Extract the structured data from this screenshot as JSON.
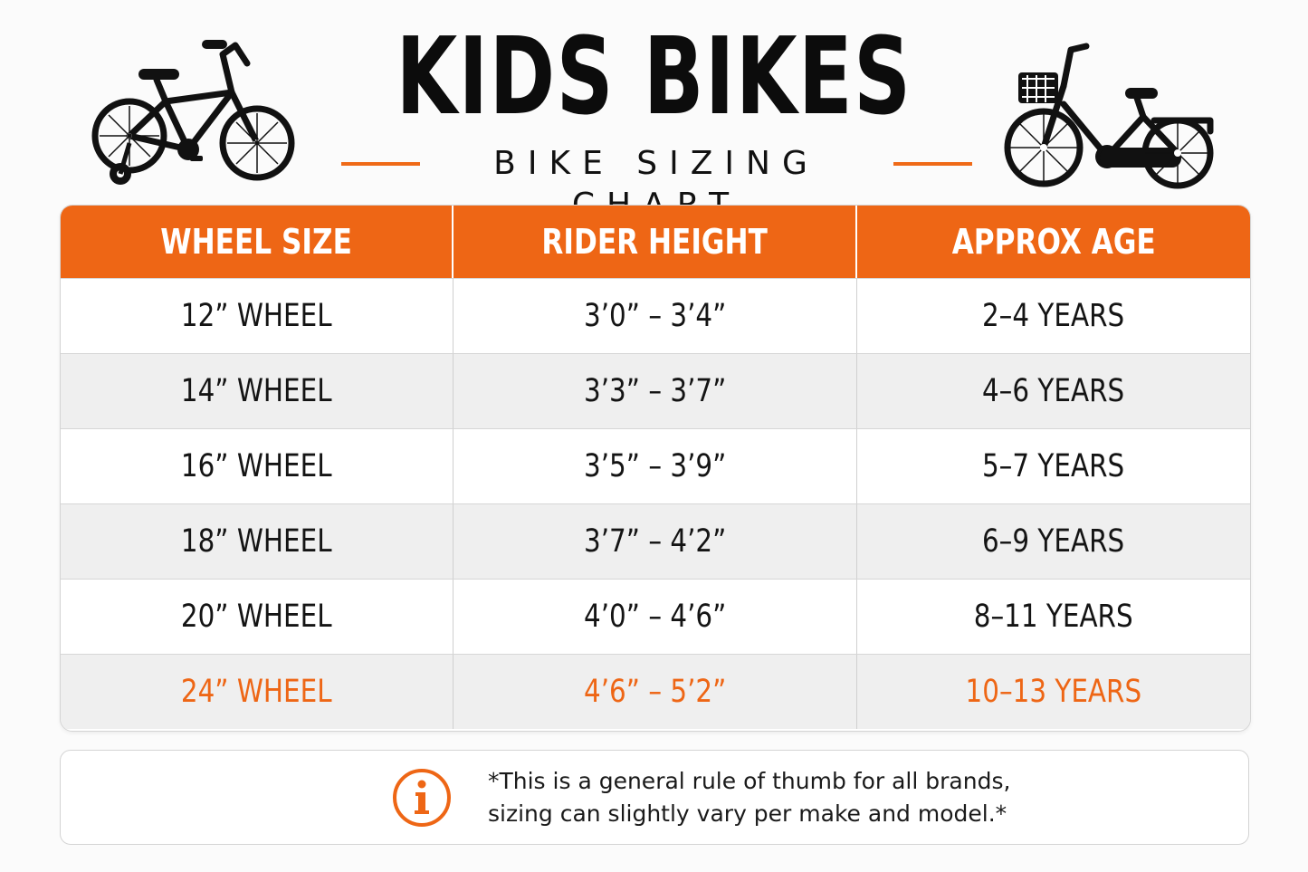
{
  "header": {
    "title": "KIDS BIKES",
    "subtitle": "BIKE SIZING CHART"
  },
  "icons": {
    "left_bike": "bike-with-training-wheels-icon",
    "right_bike": "bike-with-basket-icon",
    "info": "info-icon"
  },
  "colors": {
    "accent": "#ee6615",
    "text": "#111111",
    "row_alt": "#efefef"
  },
  "table": {
    "headers": [
      "WHEEL SIZE",
      "RIDER HEIGHT",
      "APPROX AGE"
    ],
    "rows": [
      [
        "12” WHEEL",
        "3’0” – 3’4”",
        "2–4 YEARS"
      ],
      [
        "14” WHEEL",
        "3’3” – 3’7”",
        "4–6 YEARS"
      ],
      [
        "16” WHEEL",
        "3’5” – 3’9”",
        "5–7 YEARS"
      ],
      [
        "18” WHEEL",
        "3’7” – 4’2”",
        "6–9 YEARS"
      ],
      [
        "20” WHEEL",
        "4’0” – 4’6”",
        "8–11 YEARS"
      ],
      [
        "24” WHEEL",
        "4’6” – 5’2”",
        "10–13 YEARS"
      ]
    ]
  },
  "note": {
    "line1": "*This is a general rule of thumb for all brands,",
    "line2": "sizing can slightly vary per make and model.*"
  }
}
